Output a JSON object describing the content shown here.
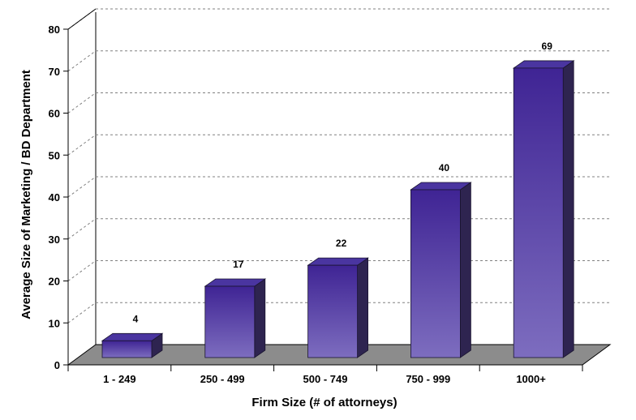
{
  "chart_data": {
    "type": "bar",
    "categories": [
      "1 - 249",
      "250 - 499",
      "500 - 749",
      "750 - 999",
      "1000+"
    ],
    "values": [
      4,
      17,
      22,
      40,
      69
    ],
    "title": "",
    "xlabel": "Firm Size (# of attorneys)",
    "ylabel": "Average Size of Marketing / BD Department",
    "ylim": [
      0,
      80
    ],
    "yticks": [
      0,
      10,
      20,
      30,
      40,
      50,
      60,
      70,
      80
    ],
    "grid": true,
    "style": "3d",
    "colors": {
      "bar_top": "#3f2494",
      "bar_bottom": "#7d6dbf",
      "bar_side": "#2e2450",
      "bar_cap": "#4a35a0",
      "floor": "#8c8c8c",
      "wall": "#ffffff",
      "grid": "#808080"
    }
  }
}
